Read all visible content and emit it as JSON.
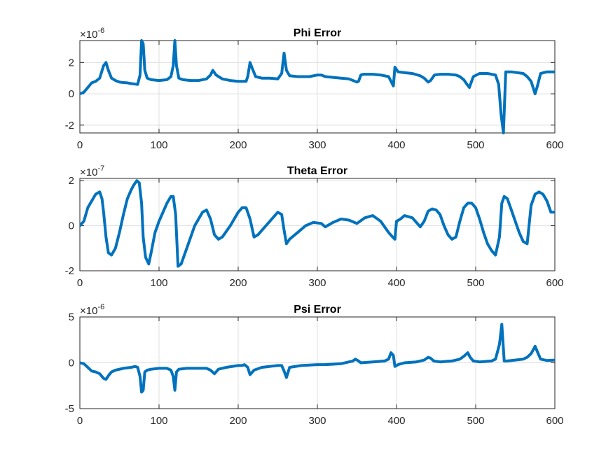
{
  "chart_data": [
    {
      "type": "line",
      "title": "Phi Error",
      "multiplier": {
        "base": "×10",
        "exponent": "-6"
      },
      "xlim": [
        0,
        600
      ],
      "ylim": [
        -2.5,
        3.4
      ],
      "xticks": [
        0,
        100,
        200,
        300,
        400,
        500,
        600
      ],
      "yticks": [
        -2,
        0,
        2
      ],
      "grid": true,
      "color": "#0072bd",
      "series": [
        {
          "x": [
            0,
            5,
            10,
            15,
            20,
            25,
            30,
            33,
            36,
            40,
            45,
            50,
            55,
            60,
            65,
            70,
            73,
            76,
            78,
            80,
            82,
            85,
            90,
            100,
            110,
            115,
            118,
            120,
            122,
            125,
            130,
            140,
            150,
            160,
            165,
            168,
            172,
            180,
            190,
            200,
            210,
            212,
            215,
            218,
            222,
            230,
            240,
            250,
            255,
            258,
            261,
            265,
            275,
            290,
            300,
            305,
            310,
            320,
            330,
            340,
            350,
            352,
            355,
            358,
            362,
            370,
            380,
            390,
            393,
            396,
            398,
            402,
            410,
            420,
            430,
            435,
            440,
            443,
            448,
            455,
            465,
            475,
            480,
            485,
            489,
            492,
            497,
            505,
            515,
            520,
            525,
            529,
            532,
            535,
            538,
            545,
            560,
            565,
            570,
            575,
            578,
            582,
            590,
            600
          ],
          "y": [
            0.0,
            0.1,
            0.4,
            0.7,
            0.8,
            1.0,
            1.8,
            2.0,
            1.5,
            1.0,
            0.85,
            0.75,
            0.72,
            0.7,
            0.65,
            0.62,
            0.6,
            1.2,
            3.4,
            3.2,
            1.5,
            1.0,
            0.9,
            0.85,
            0.9,
            1.1,
            1.8,
            3.4,
            1.8,
            1.0,
            0.9,
            0.85,
            0.85,
            0.95,
            1.2,
            1.5,
            1.2,
            0.95,
            0.85,
            0.8,
            0.8,
            1.1,
            2.0,
            1.6,
            1.1,
            1.0,
            1.0,
            0.95,
            1.3,
            2.6,
            1.5,
            1.15,
            1.1,
            1.1,
            1.2,
            1.2,
            1.1,
            1.05,
            1.0,
            0.95,
            0.75,
            0.8,
            1.2,
            1.25,
            1.25,
            1.25,
            1.2,
            1.1,
            0.8,
            0.5,
            1.7,
            1.4,
            1.35,
            1.3,
            1.15,
            1.0,
            0.75,
            0.85,
            1.2,
            1.25,
            1.25,
            1.2,
            1.1,
            0.9,
            0.6,
            0.4,
            1.1,
            1.3,
            1.3,
            1.25,
            1.2,
            0.6,
            -1.3,
            -2.5,
            1.4,
            1.4,
            1.3,
            1.1,
            0.8,
            0.0,
            0.5,
            1.3,
            1.4,
            1.4
          ]
        }
      ]
    },
    {
      "type": "line",
      "title": "Theta Error",
      "multiplier": {
        "base": "×10",
        "exponent": "-7"
      },
      "xlim": [
        0,
        600
      ],
      "ylim": [
        -2,
        2.1
      ],
      "xticks": [
        0,
        100,
        200,
        300,
        400,
        500,
        600
      ],
      "yticks": [
        -2,
        0,
        2
      ],
      "grid": true,
      "color": "#0072bd",
      "series": [
        {
          "x": [
            0,
            5,
            10,
            15,
            20,
            25,
            28,
            30,
            33,
            36,
            40,
            45,
            50,
            55,
            60,
            65,
            68,
            72,
            75,
            78,
            80,
            83,
            87,
            90,
            95,
            100,
            110,
            115,
            118,
            121,
            124,
            128,
            135,
            145,
            155,
            160,
            165,
            170,
            175,
            180,
            190,
            200,
            205,
            210,
            215,
            220,
            225,
            235,
            245,
            250,
            255,
            258,
            261,
            265,
            275,
            285,
            295,
            305,
            310,
            320,
            330,
            340,
            350,
            360,
            370,
            380,
            390,
            395,
            398,
            400,
            405,
            410,
            420,
            430,
            435,
            440,
            445,
            450,
            455,
            460,
            465,
            470,
            475,
            480,
            485,
            490,
            495,
            500,
            505,
            510,
            515,
            520,
            525,
            530,
            533,
            536,
            540,
            545,
            550,
            555,
            560,
            565,
            570,
            575,
            580,
            585,
            590,
            595,
            600
          ],
          "y": [
            0.0,
            0.2,
            0.8,
            1.1,
            1.4,
            1.5,
            1.2,
            0.6,
            -0.5,
            -1.2,
            -1.3,
            -1.0,
            -0.3,
            0.5,
            1.2,
            1.6,
            1.8,
            2.0,
            1.9,
            1.0,
            -0.5,
            -1.4,
            -1.7,
            -1.2,
            -0.3,
            0.2,
            1.0,
            1.3,
            1.3,
            0.5,
            -1.8,
            -1.7,
            -1.0,
            0.0,
            0.6,
            0.7,
            0.3,
            -0.4,
            -0.6,
            -0.5,
            0.0,
            0.6,
            0.8,
            0.8,
            0.3,
            -0.5,
            -0.4,
            0.0,
            0.4,
            0.6,
            0.5,
            -0.2,
            -0.8,
            -0.6,
            -0.3,
            0.0,
            0.15,
            0.1,
            -0.05,
            0.15,
            0.3,
            0.25,
            0.1,
            0.35,
            0.45,
            0.2,
            -0.3,
            -0.5,
            -0.6,
            0.2,
            0.3,
            0.45,
            0.35,
            -0.05,
            0.2,
            0.65,
            0.75,
            0.7,
            0.5,
            0.0,
            -0.4,
            -0.6,
            -0.5,
            0.2,
            0.8,
            1.0,
            1.0,
            0.8,
            0.3,
            -0.3,
            -0.8,
            -1.1,
            -1.3,
            -0.5,
            1.0,
            1.3,
            1.2,
            0.7,
            0.2,
            -0.3,
            -0.7,
            -0.8,
            0.9,
            1.4,
            1.5,
            1.4,
            1.1,
            0.6,
            0.6
          ]
        }
      ]
    },
    {
      "type": "line",
      "title": "Psi Error",
      "multiplier": {
        "base": "×10",
        "exponent": "-6"
      },
      "xlim": [
        0,
        600
      ],
      "ylim": [
        -5,
        5
      ],
      "xticks": [
        0,
        100,
        200,
        300,
        400,
        500,
        600
      ],
      "yticks": [
        -5,
        0,
        5
      ],
      "grid": true,
      "color": "#0072bd",
      "series": [
        {
          "x": [
            0,
            5,
            10,
            15,
            20,
            25,
            30,
            33,
            37,
            40,
            45,
            55,
            65,
            70,
            73,
            76,
            78,
            80,
            82,
            85,
            90,
            100,
            110,
            115,
            118,
            120,
            122,
            125,
            135,
            150,
            160,
            165,
            170,
            172,
            175,
            185,
            200,
            205,
            208,
            212,
            215,
            220,
            230,
            240,
            250,
            255,
            258,
            261,
            265,
            280,
            300,
            310,
            320,
            330,
            340,
            345,
            348,
            352,
            355,
            370,
            385,
            390,
            393,
            396,
            398,
            402,
            410,
            425,
            430,
            435,
            440,
            443,
            447,
            455,
            470,
            480,
            485,
            490,
            493,
            497,
            505,
            520,
            525,
            530,
            533,
            536,
            540,
            550,
            560,
            565,
            570,
            575,
            578,
            582,
            590,
            600
          ],
          "y": [
            0.0,
            -0.1,
            -0.5,
            -0.9,
            -1.0,
            -1.2,
            -1.7,
            -1.8,
            -1.3,
            -1.0,
            -0.8,
            -0.6,
            -0.5,
            -0.4,
            -0.5,
            -1.5,
            -3.2,
            -3.0,
            -1.0,
            -0.8,
            -0.7,
            -0.6,
            -0.6,
            -0.8,
            -1.5,
            -3.0,
            -1.0,
            -0.7,
            -0.6,
            -0.6,
            -0.6,
            -0.8,
            -1.2,
            -1.0,
            -0.7,
            -0.5,
            -0.3,
            -0.3,
            -0.2,
            -0.5,
            -1.3,
            -0.8,
            -0.5,
            -0.4,
            -0.3,
            -0.3,
            -0.9,
            -1.6,
            -0.5,
            -0.3,
            -0.2,
            -0.2,
            -0.15,
            -0.1,
            0.1,
            0.2,
            0.4,
            0.2,
            0.0,
            0.1,
            0.2,
            0.4,
            1.1,
            0.8,
            -0.4,
            -0.2,
            0.0,
            0.1,
            0.2,
            0.3,
            0.6,
            0.5,
            0.2,
            0.1,
            0.2,
            0.4,
            0.7,
            1.1,
            0.6,
            0.2,
            0.1,
            0.2,
            0.4,
            2.0,
            4.2,
            0.2,
            0.2,
            0.3,
            0.4,
            0.6,
            1.0,
            1.8,
            1.2,
            0.4,
            0.25,
            0.3
          ]
        }
      ]
    }
  ]
}
